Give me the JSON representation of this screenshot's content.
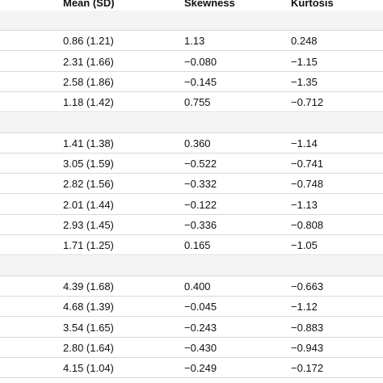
{
  "table": {
    "header": [
      "Mean (SD)",
      "Skewness",
      "Kurtosis"
    ],
    "rows": [
      [],
      [
        "0.86 (1.21)",
        "1.13",
        "0.248"
      ],
      [
        "2.31 (1.66)",
        "−0.080",
        "−1.15"
      ],
      [
        "2.58 (1.86)",
        "−0.145",
        "−1.35"
      ],
      [
        "1.18 (1.42)",
        "0.755",
        "−0.712"
      ],
      [],
      [
        "1.41 (1.38)",
        "0.360",
        "−1.14"
      ],
      [
        "3.05 (1.59)",
        "−0.522",
        "−0.741"
      ],
      [
        "2.82 (1.56)",
        "−0.332",
        "−0.748"
      ],
      [
        "2.01 (1.44)",
        "−0.122",
        "−1.13"
      ],
      [
        "2.93 (1.45)",
        "−0.336",
        "−0.808"
      ],
      [
        "1.71 (1.25)",
        "0.165",
        "−1.05"
      ],
      [],
      [
        "4.39 (1.68)",
        "0.400",
        "−0.663"
      ],
      [
        "4.68 (1.39)",
        "−0.045",
        "−1.12"
      ],
      [
        "3.54 (1.65)",
        "−0.243",
        "−0.883"
      ],
      [
        "2.80 (1.64)",
        "−0.430",
        "−0.943"
      ],
      [
        "4.15 (1.04)",
        "−0.249",
        "−0.172"
      ]
    ]
  }
}
